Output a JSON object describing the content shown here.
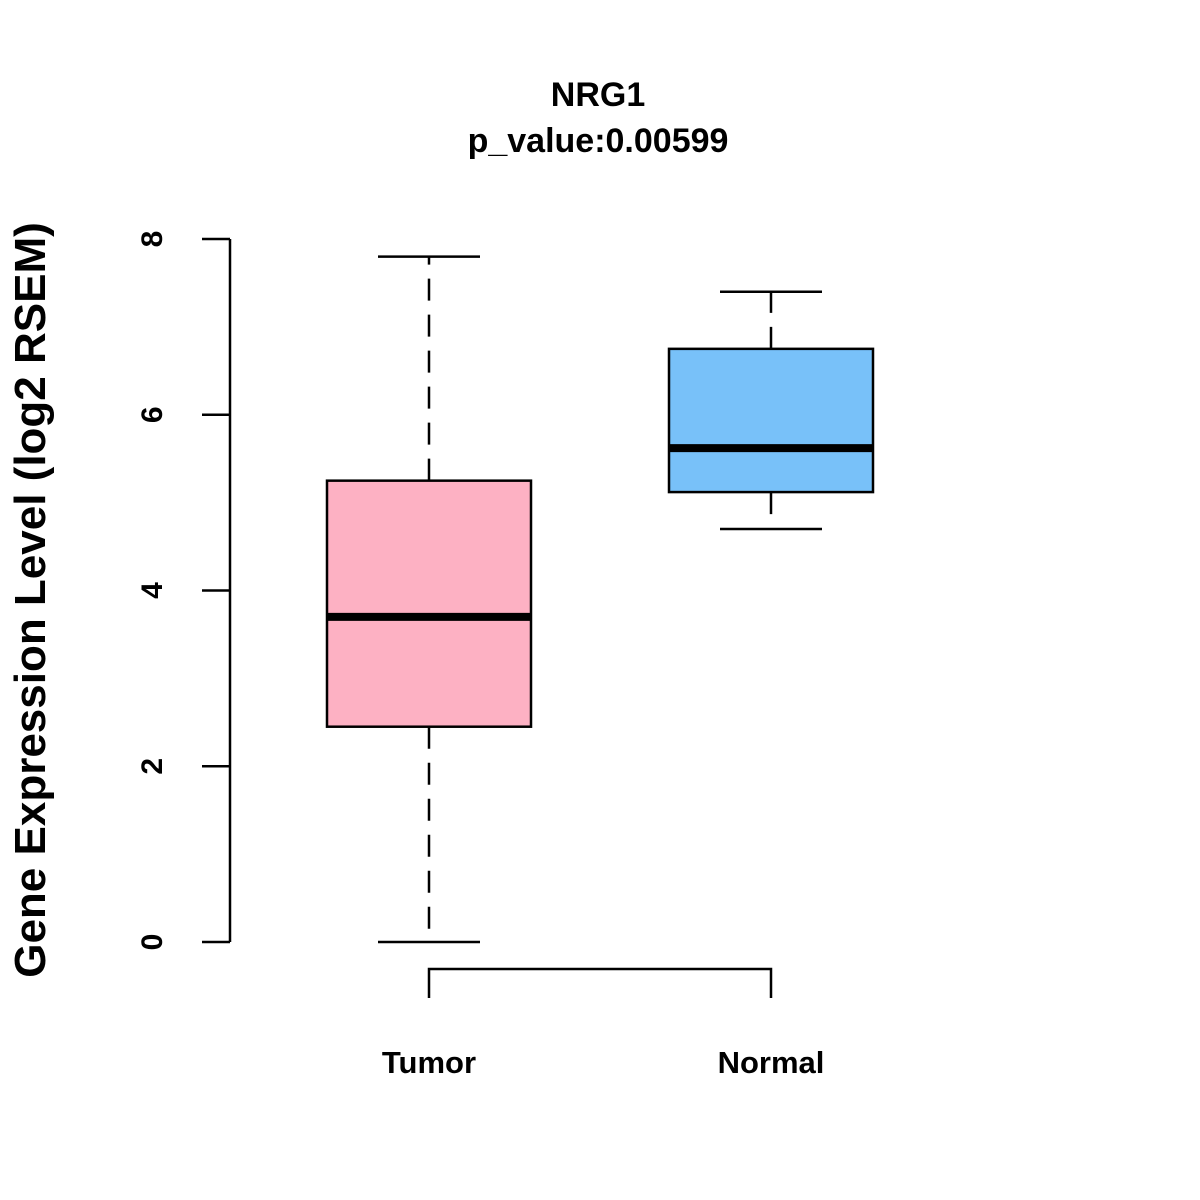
{
  "chart_data": {
    "type": "boxplot",
    "title": "NRG1",
    "subtitle": "p_value:0.00599",
    "ylabel": "Gene Expression Level (log2 RSEM)",
    "xlabel": "",
    "ylim": [
      0,
      8
    ],
    "yticks": [
      0,
      2,
      4,
      6,
      8
    ],
    "ytick_labels": [
      "0",
      "2",
      "4",
      "6",
      "8"
    ],
    "groups": [
      {
        "name": "Tumor",
        "min": 0.0,
        "q1": 2.45,
        "median": 3.7,
        "q3": 5.25,
        "max": 7.8,
        "color": "#FDB1C3"
      },
      {
        "name": "Normal",
        "min": 4.7,
        "q1": 5.12,
        "median": 5.62,
        "q3": 6.75,
        "max": 7.4,
        "color": "#78C1F9"
      }
    ],
    "comparison_bracket": {
      "from": "Tumor",
      "to": "Normal"
    }
  }
}
